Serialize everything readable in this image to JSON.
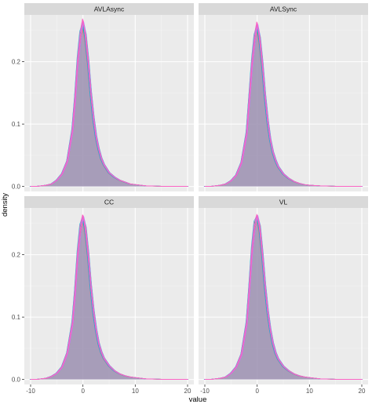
{
  "chart_data": {
    "type": "area",
    "title": "",
    "xlabel": "value",
    "ylabel": "density",
    "xlim": [
      -10,
      20
    ],
    "ylim": [
      -0.008,
      0.275
    ],
    "x_ticks": [
      -10,
      0,
      10,
      20
    ],
    "y_ticks": [
      0.0,
      0.1,
      0.2
    ],
    "y_tick_labels": [
      "0.0",
      "0.1",
      "0.2"
    ],
    "grid": true,
    "legend": "none",
    "colors": {
      "panel_bg": "#ebebeb",
      "strip_bg": "#d9d9d9",
      "grid_major": "#ffffff",
      "fill": "#9b8fb0",
      "series_palette": [
        "#f8766d",
        "#e58700",
        "#c99800",
        "#a3a500",
        "#6bb100",
        "#00ba38",
        "#00bf7d",
        "#00c0af",
        "#00bcd8",
        "#00b0f6",
        "#619cff",
        "#b983ff",
        "#e76bf3",
        "#fd61d1",
        "#ff67a4",
        "#f564e3",
        "#ff62bc"
      ]
    },
    "x": [
      -10,
      -9,
      -8,
      -7,
      -6,
      -5,
      -4,
      -3,
      -2,
      -1.5,
      -1,
      -0.5,
      0,
      0.5,
      1,
      1.5,
      2,
      2.5,
      3,
      3.5,
      4,
      5,
      6,
      7,
      8,
      9,
      10,
      12,
      14,
      16,
      18,
      20
    ],
    "facets": [
      {
        "label": "AVLAsync",
        "values": [
          0,
          0,
          0.001,
          0.002,
          0.004,
          0.01,
          0.02,
          0.04,
          0.09,
          0.14,
          0.2,
          0.24,
          0.255,
          0.24,
          0.2,
          0.15,
          0.11,
          0.08,
          0.06,
          0.045,
          0.035,
          0.022,
          0.015,
          0.01,
          0.007,
          0.004,
          0.003,
          0.001,
          0.0005,
          0.0002,
          0.0001,
          0
        ],
        "peak_max": 0.27
      },
      {
        "label": "AVLSync",
        "values": [
          0,
          0,
          0.001,
          0.002,
          0.004,
          0.009,
          0.018,
          0.038,
          0.085,
          0.14,
          0.195,
          0.235,
          0.252,
          0.235,
          0.195,
          0.145,
          0.105,
          0.075,
          0.055,
          0.042,
          0.032,
          0.02,
          0.013,
          0.008,
          0.005,
          0.003,
          0.002,
          0.001,
          0.0005,
          0.0002,
          0.0001,
          0
        ],
        "peak_max": 0.265
      },
      {
        "label": "CC",
        "values": [
          0,
          0,
          0.001,
          0.002,
          0.005,
          0.01,
          0.02,
          0.042,
          0.09,
          0.14,
          0.2,
          0.24,
          0.256,
          0.24,
          0.2,
          0.15,
          0.11,
          0.08,
          0.058,
          0.044,
          0.034,
          0.022,
          0.014,
          0.009,
          0.006,
          0.004,
          0.003,
          0.001,
          0.0005,
          0.0002,
          0.0001,
          0
        ],
        "peak_max": 0.265
      },
      {
        "label": "VL",
        "values": [
          0,
          0,
          0.001,
          0.002,
          0.004,
          0.01,
          0.02,
          0.04,
          0.09,
          0.145,
          0.205,
          0.245,
          0.258,
          0.242,
          0.2,
          0.15,
          0.11,
          0.08,
          0.058,
          0.043,
          0.033,
          0.021,
          0.014,
          0.009,
          0.006,
          0.004,
          0.003,
          0.001,
          0.0005,
          0.0002,
          0.0001,
          0
        ],
        "peak_max": 0.265
      }
    ]
  }
}
